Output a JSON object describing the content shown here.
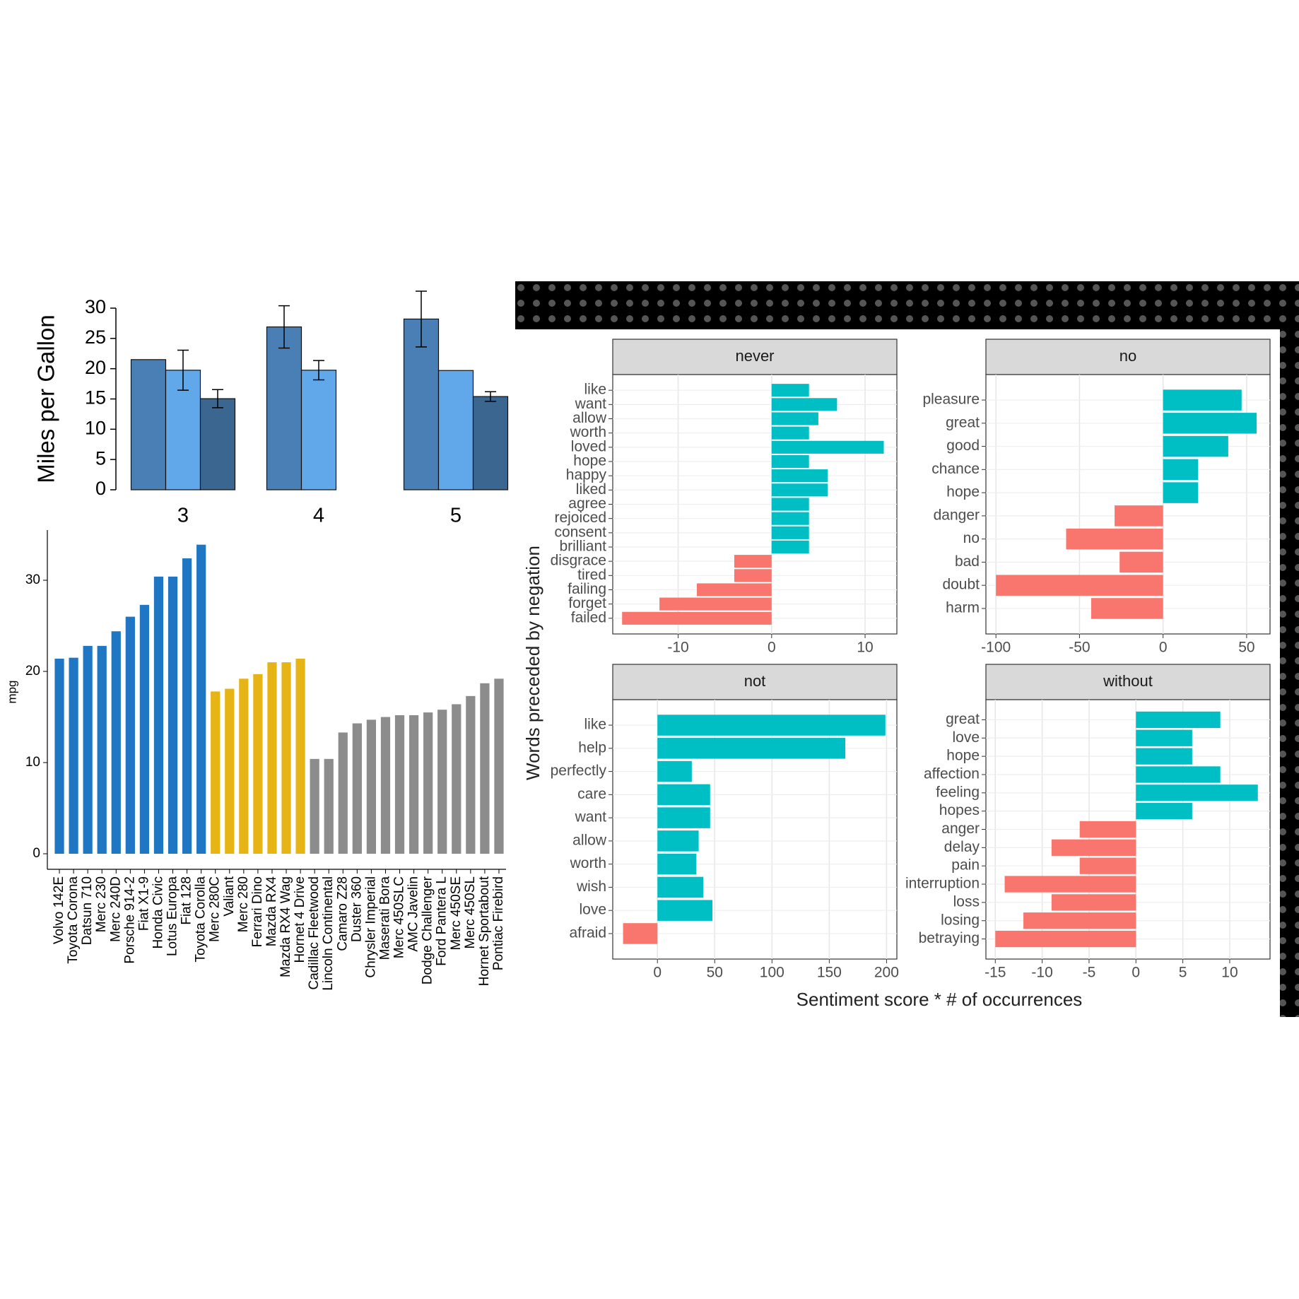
{
  "chart_data": [
    {
      "type": "grouped-bar",
      "ylabel": "Miles per Gallon",
      "categories": [
        "3",
        "4",
        "5"
      ],
      "series": [
        {
          "color": "#4a7fb5",
          "values": [
            21.5,
            26.9,
            28.2
          ],
          "errors": [
            null,
            3.5,
            4.6
          ]
        },
        {
          "color": "#61a8ea",
          "values": [
            19.75,
            19.75,
            19.7
          ],
          "errors": [
            3.3,
            1.6,
            null
          ]
        },
        {
          "color": "#3b6690",
          "values": [
            15.05,
            null,
            15.4
          ],
          "errors": [
            1.5,
            null,
            0.8
          ]
        }
      ],
      "ylim": [
        0,
        30
      ],
      "yticks": [
        0,
        5,
        10,
        15,
        20,
        25,
        30
      ]
    },
    {
      "type": "bar",
      "ylabel": "mpg",
      "categories": [
        "Volvo 142E",
        "Toyota Corona",
        "Datsun 710",
        "Merc 230",
        "Merc 240D",
        "Porsche 914-2",
        "Fiat X1-9",
        "Honda Civic",
        "Lotus Europa",
        "Fiat 128",
        "Toyota Corolla",
        "Merc 280C",
        "Valiant",
        "Merc 280",
        "Ferrari Dino",
        "Mazda RX4",
        "Mazda RX4 Wag",
        "Hornet 4 Drive",
        "Cadillac Fleetwood",
        "Lincoln Continental",
        "Camaro Z28",
        "Duster 360",
        "Chrysler Imperial",
        "Maserati Bora",
        "Merc 450SLC",
        "AMC Javelin",
        "Dodge Challenger",
        "Ford Pantera L",
        "Merc 450SE",
        "Merc 450SL",
        "Hornet Sportabout",
        "Pontiac Firebird"
      ],
      "values": [
        21.4,
        21.5,
        22.8,
        22.8,
        24.4,
        26.0,
        27.3,
        30.4,
        30.4,
        32.4,
        33.9,
        17.8,
        18.1,
        19.2,
        19.7,
        21.0,
        21.0,
        21.4,
        10.4,
        10.4,
        13.3,
        14.3,
        14.7,
        15.0,
        15.2,
        15.2,
        15.5,
        15.8,
        16.4,
        17.3,
        18.7,
        19.2
      ],
      "colors": [
        "#1f77c4",
        "#1f77c4",
        "#1f77c4",
        "#1f77c4",
        "#1f77c4",
        "#1f77c4",
        "#1f77c4",
        "#1f77c4",
        "#1f77c4",
        "#1f77c4",
        "#1f77c4",
        "#e7b416",
        "#e7b416",
        "#e7b416",
        "#e7b416",
        "#e7b416",
        "#e7b416",
        "#e7b416",
        "#8c8c8c",
        "#8c8c8c",
        "#8c8c8c",
        "#8c8c8c",
        "#8c8c8c",
        "#8c8c8c",
        "#8c8c8c",
        "#8c8c8c",
        "#8c8c8c",
        "#8c8c8c",
        "#8c8c8c",
        "#8c8c8c",
        "#8c8c8c",
        "#8c8c8c"
      ],
      "ylim": [
        0,
        35.5
      ],
      "yticks": [
        0,
        10,
        20,
        30
      ]
    },
    {
      "type": "facet-bar",
      "ylabel": "Words preceded by negation",
      "xlabel": "Sentiment score * # of occurrences",
      "positive_color": "#00bfc4",
      "negative_color": "#f8766d",
      "grid": true,
      "facets": [
        {
          "title": "never",
          "categories": [
            "like",
            "want",
            "allow",
            "worth",
            "loved",
            "hope",
            "happy",
            "liked",
            "agree",
            "rejoiced",
            "consent",
            "brilliant",
            "disgrace",
            "tired",
            "failing",
            "forget",
            "failed"
          ],
          "values": [
            4,
            7,
            5,
            4,
            12,
            4,
            6,
            6,
            4,
            4,
            4,
            4,
            -4,
            -4,
            -8,
            -12,
            -16
          ],
          "xlim": [
            -17,
            13.4
          ],
          "xticks": [
            -10,
            0,
            10
          ]
        },
        {
          "title": "no",
          "categories": [
            "pleasure",
            "great",
            "good",
            "chance",
            "hope",
            "danger",
            "no",
            "bad",
            "doubt",
            "harm"
          ],
          "values": [
            47,
            56,
            39,
            21,
            21,
            -29,
            -58,
            -26,
            -100,
            -43
          ],
          "xlim": [
            -106,
            64
          ],
          "xticks": [
            -100,
            -50,
            0,
            50
          ]
        },
        {
          "title": "not",
          "categories": [
            "like",
            "help",
            "perfectly",
            "care",
            "want",
            "allow",
            "worth",
            "wish",
            "love",
            "afraid"
          ],
          "values": [
            199,
            164,
            30,
            46,
            46,
            36,
            34,
            40,
            48,
            -30
          ],
          "xlim": [
            -39,
            209
          ],
          "xticks": [
            0,
            50,
            100,
            150,
            200
          ]
        },
        {
          "title": "without",
          "categories": [
            "great",
            "love",
            "hope",
            "affection",
            "feeling",
            "hopes",
            "anger",
            "delay",
            "pain",
            "interruption",
            "loss",
            "losing",
            "betraying"
          ],
          "values": [
            9,
            6,
            6,
            9,
            13,
            6,
            -6,
            -9,
            -6,
            -14,
            -9,
            -12,
            -15
          ],
          "xlim": [
            -16,
            14.3
          ],
          "xticks": [
            -15,
            -10,
            -5,
            0,
            5,
            10
          ]
        }
      ]
    }
  ]
}
